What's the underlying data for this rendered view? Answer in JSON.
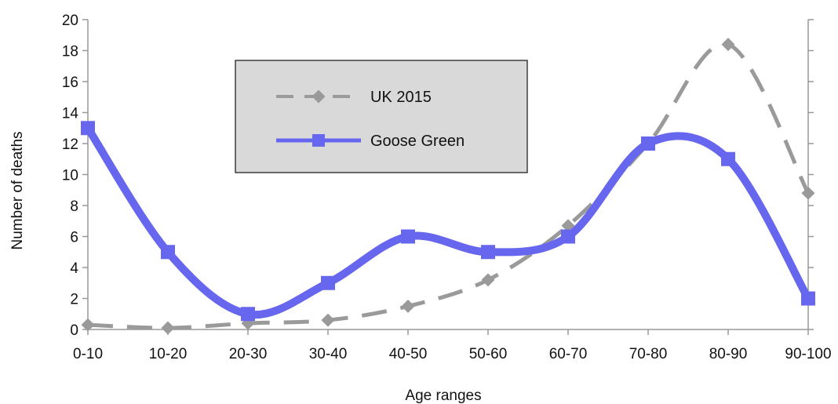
{
  "chart_data": {
    "type": "line",
    "title": "",
    "xlabel": "Age ranges",
    "ylabel": "Number of deaths",
    "categories": [
      "0-10",
      "10-20",
      "20-30",
      "30-40",
      "40-50",
      "50-60",
      "60-70",
      "70-80",
      "80-90",
      "90-100"
    ],
    "ylim": [
      0,
      20
    ],
    "yticks": [
      0,
      2,
      4,
      6,
      8,
      10,
      12,
      14,
      16,
      18,
      20
    ],
    "smooth": true,
    "grid": false,
    "legend_position": "top-left",
    "series": [
      {
        "name": "UK 2015",
        "values": [
          0.3,
          0.1,
          0.4,
          0.6,
          1.5,
          3.2,
          6.7,
          12.0,
          18.4,
          8.8
        ],
        "color": "#9a9a9a",
        "style": "dashed",
        "marker": "diamond"
      },
      {
        "name": "Goose Green",
        "values": [
          13,
          5,
          1,
          3,
          6,
          5,
          6,
          12,
          11,
          2
        ],
        "color": "#6666ee",
        "style": "solid",
        "marker": "square"
      }
    ]
  }
}
